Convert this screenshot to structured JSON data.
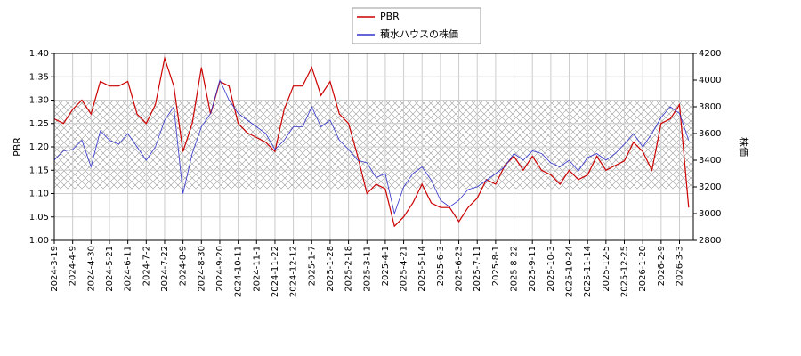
{
  "chart_data": {
    "type": "line",
    "categories": [
      "2024-3-19",
      null,
      "2024-4-9",
      null,
      "2024-4-30",
      null,
      "2024-5-21",
      null,
      "2024-6-11",
      null,
      "2024-7-2",
      null,
      "2024-7-22",
      null,
      "2024-8-9",
      null,
      "2024-8-30",
      null,
      "2024-9-20",
      null,
      "2024-10-11",
      null,
      "2024-11-1",
      null,
      "2024-11-22",
      null,
      "2024-12-12",
      null,
      "2025-1-7",
      null,
      "2025-1-28",
      null,
      "2025-2-18",
      null,
      "2025-3-11",
      null,
      "2025-4-1",
      null,
      "2025-4-21",
      null,
      "2025-5-14",
      null,
      "2025-6-3",
      null,
      "2025-6-23",
      null,
      "2025-7-11",
      null,
      "2025-8-1",
      null,
      "2025-8-22",
      null,
      "2025-9-11",
      null,
      "2025-10-3",
      null,
      "2025-10-24",
      null,
      "2025-11-14",
      null,
      "2025-12-5",
      null,
      "2025-12-25",
      null,
      "2026-1-20",
      null,
      "2026-2-9",
      null,
      "2026-3-3",
      null
    ],
    "series": [
      {
        "name": "PBR",
        "color": "#cc0000",
        "axis": "y",
        "values": [
          1.26,
          1.25,
          1.28,
          1.3,
          1.27,
          1.34,
          1.33,
          1.33,
          1.34,
          1.27,
          1.25,
          1.29,
          1.39,
          1.33,
          1.19,
          1.25,
          1.37,
          1.27,
          1.34,
          1.33,
          1.25,
          1.23,
          1.22,
          1.21,
          1.19,
          1.28,
          1.33,
          1.33,
          1.37,
          1.31,
          1.34,
          1.27,
          1.25,
          1.18,
          1.1,
          1.12,
          1.11,
          1.03,
          1.05,
          1.08,
          1.12,
          1.08,
          1.07,
          1.07,
          1.04,
          1.07,
          1.09,
          1.13,
          1.12,
          1.16,
          1.18,
          1.15,
          1.18,
          1.15,
          1.14,
          1.12,
          1.15,
          1.13,
          1.14,
          1.18,
          1.15,
          1.16,
          1.17,
          1.21,
          1.19,
          1.15,
          1.25,
          1.26,
          1.29,
          1.07
        ]
      },
      {
        "name": "積水ハウスの株価",
        "color": "#3333cc",
        "axis": "y2",
        "values": [
          3400,
          3470,
          3480,
          3550,
          3350,
          3620,
          3550,
          3520,
          3600,
          3500,
          3400,
          3500,
          3700,
          3800,
          3150,
          3450,
          3650,
          3750,
          4000,
          3850,
          3750,
          3700,
          3650,
          3600,
          3480,
          3550,
          3650,
          3650,
          3800,
          3650,
          3700,
          3550,
          3480,
          3400,
          3380,
          3270,
          3300,
          3000,
          3200,
          3300,
          3350,
          3250,
          3100,
          3050,
          3100,
          3180,
          3200,
          3250,
          3300,
          3350,
          3450,
          3400,
          3470,
          3450,
          3380,
          3350,
          3400,
          3320,
          3420,
          3450,
          3400,
          3450,
          3520,
          3600,
          3500,
          3600,
          3720,
          3800,
          3750,
          3550
        ]
      }
    ],
    "ylabel": "PBR",
    "y2label": "株価",
    "ylim": [
      1.0,
      1.4
    ],
    "yticks": [
      {
        "value": 1.0,
        "label": "1.00"
      },
      {
        "value": 1.05,
        "label": "1.05"
      },
      {
        "value": 1.1,
        "label": "1.10"
      },
      {
        "value": 1.15,
        "label": "1.15"
      },
      {
        "value": 1.2,
        "label": "1.20"
      },
      {
        "value": 1.25,
        "label": "1.25"
      },
      {
        "value": 1.3,
        "label": "1.30"
      },
      {
        "value": 1.35,
        "label": "1.35"
      },
      {
        "value": 1.4,
        "label": "1.40"
      }
    ],
    "y2lim": [
      2800,
      4200
    ],
    "y2ticks": [
      2800,
      3000,
      3200,
      3400,
      3600,
      3800,
      4000,
      4200
    ],
    "band": [
      1.11,
      1.3
    ],
    "grid": true,
    "legend": "top"
  }
}
